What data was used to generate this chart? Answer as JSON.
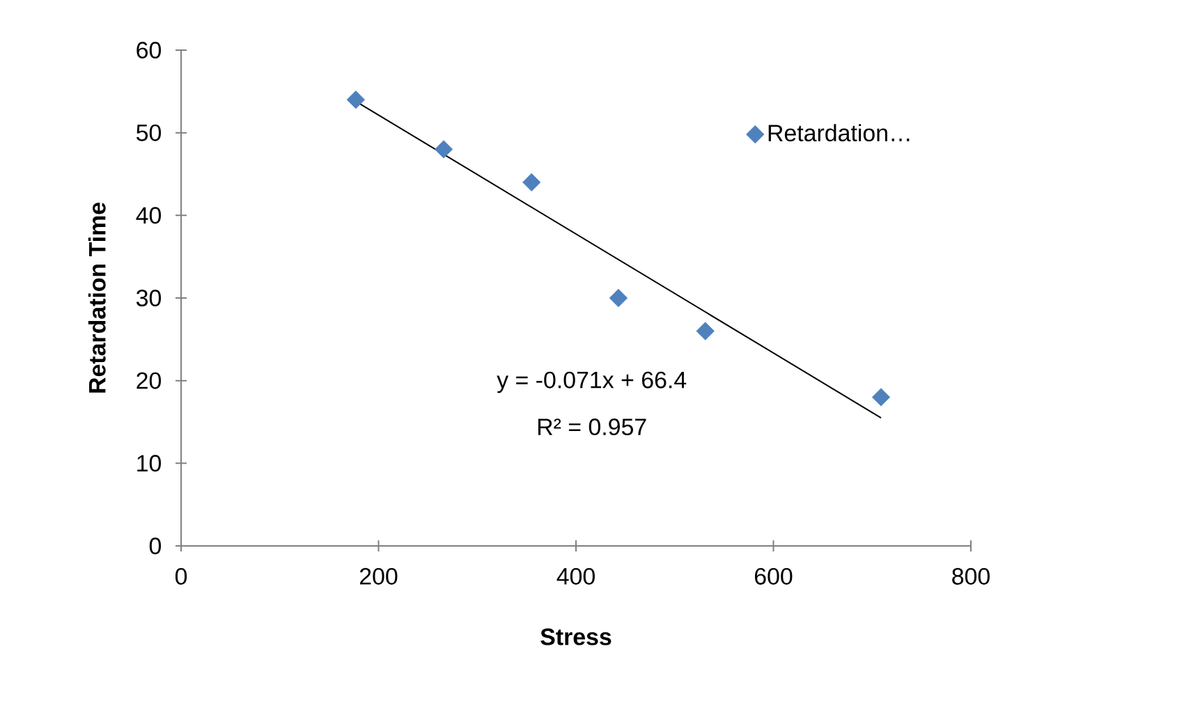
{
  "chart_data": {
    "type": "scatter",
    "xlabel": "Stress",
    "ylabel": "Retardation Time",
    "xlim": [
      0,
      800
    ],
    "xticks": [
      0,
      200,
      400,
      600,
      800
    ],
    "ylim": [
      0,
      60
    ],
    "yticks": [
      0,
      10,
      20,
      30,
      40,
      50,
      60
    ],
    "grid": false,
    "legend": "right",
    "marker": "diamond",
    "annotations": [
      "y = -0.071x + 66.4",
      "R² = 0.957"
    ],
    "series": [
      {
        "name": "Retardation…",
        "color": "#4f81bd",
        "x": [
          177,
          266,
          355,
          443,
          531,
          709
        ],
        "values": [
          54,
          48,
          44,
          30,
          26,
          18
        ]
      },
      {
        "type": "line",
        "color": "#000000",
        "marker": "none",
        "line_style": "solid",
        "x": [
          177,
          709
        ],
        "values": [
          53.8,
          15.5
        ]
      }
    ]
  }
}
